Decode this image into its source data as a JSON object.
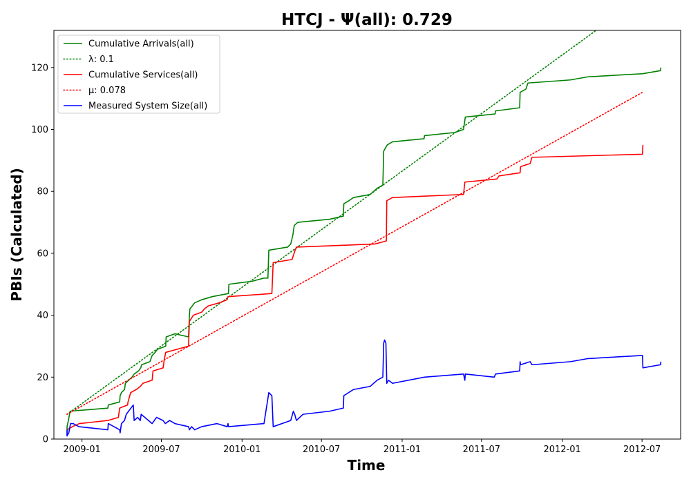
{
  "chart_data": {
    "type": "line",
    "title": "HTCJ -  Ψ(all): 0.729",
    "xlabel": "Time",
    "ylabel": "PBIs (Calculated)",
    "x_ticks": [
      "2009-01",
      "2009-07",
      "2010-01",
      "2010-07",
      "2011-01",
      "2011-07",
      "2012-01",
      "2012-07"
    ],
    "y_ticks": [
      0,
      20,
      40,
      60,
      80,
      100,
      120
    ],
    "xlim": [
      "2008-10-29",
      "2012-09-27"
    ],
    "ylim": [
      0,
      132
    ],
    "grid": false,
    "legend_position": "top-left",
    "series": [
      {
        "name": "Cumulative Arrivals(all)",
        "color": "#008000",
        "style": "solid",
        "points": [
          [
            "2008-11-28",
            1
          ],
          [
            "2008-11-28",
            4
          ],
          [
            "2008-12-01",
            6
          ],
          [
            "2008-12-05",
            9
          ],
          [
            "2009-03-01",
            10
          ],
          [
            "2009-03-02",
            11
          ],
          [
            "2009-03-28",
            12
          ],
          [
            "2009-03-29",
            14
          ],
          [
            "2009-04-01",
            15
          ],
          [
            "2009-04-08",
            16
          ],
          [
            "2009-04-10",
            18
          ],
          [
            "2009-04-25",
            20
          ],
          [
            "2009-04-30",
            21
          ],
          [
            "2009-05-10",
            22
          ],
          [
            "2009-05-15",
            23
          ],
          [
            "2009-05-17",
            24
          ],
          [
            "2009-06-05",
            25
          ],
          [
            "2009-06-10",
            27
          ],
          [
            "2009-06-17",
            28
          ],
          [
            "2009-06-22",
            29
          ],
          [
            "2009-07-11",
            30
          ],
          [
            "2009-07-12",
            33
          ],
          [
            "2009-08-01",
            34
          ],
          [
            "2009-09-01",
            33
          ],
          [
            "2009-09-03",
            40
          ],
          [
            "2009-09-04",
            42
          ],
          [
            "2009-09-15",
            44
          ],
          [
            "2009-10-01",
            45
          ],
          [
            "2009-10-25",
            46
          ],
          [
            "2009-12-01",
            47
          ],
          [
            "2009-12-02",
            50
          ],
          [
            "2010-01-25",
            51
          ],
          [
            "2010-02-20",
            52
          ],
          [
            "2010-03-01",
            52
          ],
          [
            "2010-03-03",
            61
          ],
          [
            "2010-04-15",
            62
          ],
          [
            "2010-04-22",
            63
          ],
          [
            "2010-04-27",
            66
          ],
          [
            "2010-04-30",
            69
          ],
          [
            "2010-05-08",
            70
          ],
          [
            "2010-07-20",
            71
          ],
          [
            "2010-08-20",
            72
          ],
          [
            "2010-08-21",
            76
          ],
          [
            "2010-09-02",
            77
          ],
          [
            "2010-09-12",
            78
          ],
          [
            "2010-10-20",
            79
          ],
          [
            "2010-11-05",
            81
          ],
          [
            "2010-11-18",
            82
          ],
          [
            "2010-11-20",
            93
          ],
          [
            "2010-11-28",
            95
          ],
          [
            "2010-12-10",
            96
          ],
          [
            "2011-02-20",
            97
          ],
          [
            "2011-02-21",
            98
          ],
          [
            "2011-05-01",
            99
          ],
          [
            "2011-05-21",
            100
          ],
          [
            "2011-05-25",
            104
          ],
          [
            "2011-08-01",
            105
          ],
          [
            "2011-08-02",
            106
          ],
          [
            "2011-09-26",
            107
          ],
          [
            "2011-09-27",
            112
          ],
          [
            "2011-10-10",
            113
          ],
          [
            "2011-10-15",
            115
          ],
          [
            "2012-01-20",
            116
          ],
          [
            "2012-02-29",
            117
          ],
          [
            "2012-07-02",
            118
          ],
          [
            "2012-08-12",
            119
          ],
          [
            "2012-08-13",
            120
          ]
        ]
      },
      {
        "name": "λ: 0.1",
        "color": "#008000",
        "style": "dotted",
        "points": [
          [
            "2008-11-28",
            8
          ],
          [
            "2012-03-28",
            133
          ]
        ]
      },
      {
        "name": "Cumulative Services(all)",
        "color": "#ff0000",
        "style": "solid",
        "points": [
          [
            "2008-11-28",
            3
          ],
          [
            "2008-12-10",
            4
          ],
          [
            "2008-12-26",
            5
          ],
          [
            "2009-03-01",
            6
          ],
          [
            "2009-03-25",
            7
          ],
          [
            "2009-03-28",
            10
          ],
          [
            "2009-04-15",
            11
          ],
          [
            "2009-04-16",
            12
          ],
          [
            "2009-04-18",
            13
          ],
          [
            "2009-04-22",
            15
          ],
          [
            "2009-05-05",
            16
          ],
          [
            "2009-05-14",
            17
          ],
          [
            "2009-05-20",
            18
          ],
          [
            "2009-06-10",
            19
          ],
          [
            "2009-06-12",
            22
          ],
          [
            "2009-07-05",
            23
          ],
          [
            "2009-07-08",
            26
          ],
          [
            "2009-07-11",
            28
          ],
          [
            "2009-09-01",
            30
          ],
          [
            "2009-09-03",
            38
          ],
          [
            "2009-09-12",
            40
          ],
          [
            "2009-10-01",
            41
          ],
          [
            "2009-10-07",
            42
          ],
          [
            "2009-10-16",
            43
          ],
          [
            "2009-11-10",
            44
          ],
          [
            "2009-11-28",
            45
          ],
          [
            "2009-11-30",
            46
          ],
          [
            "2010-03-10",
            47
          ],
          [
            "2010-03-13",
            57
          ],
          [
            "2010-04-25",
            58
          ],
          [
            "2010-05-02",
            61
          ],
          [
            "2010-05-05",
            62
          ],
          [
            "2010-10-31",
            63
          ],
          [
            "2010-11-26",
            64
          ],
          [
            "2010-11-27",
            77
          ],
          [
            "2010-12-10",
            78
          ],
          [
            "2011-05-21",
            79
          ],
          [
            "2011-05-24",
            83
          ],
          [
            "2011-08-05",
            84
          ],
          [
            "2011-08-10",
            85
          ],
          [
            "2011-09-27",
            86
          ],
          [
            "2011-09-28",
            88
          ],
          [
            "2011-10-20",
            89
          ],
          [
            "2011-10-24",
            91
          ],
          [
            "2012-07-02",
            92
          ],
          [
            "2012-07-03",
            95
          ]
        ]
      },
      {
        "name": "μ: 0.078",
        "color": "#ff0000",
        "style": "dotted",
        "points": [
          [
            "2008-11-28",
            8
          ],
          [
            "2012-07-02",
            112
          ]
        ]
      },
      {
        "name": "Measured System Size(all)",
        "color": "#0000ff",
        "style": "solid",
        "points": [
          [
            "2008-11-28",
            3
          ],
          [
            "2008-11-28",
            1
          ],
          [
            "2008-12-02",
            2
          ],
          [
            "2008-12-06",
            5
          ],
          [
            "2008-12-12",
            5
          ],
          [
            "2008-12-25",
            4
          ],
          [
            "2009-03-01",
            3
          ],
          [
            "2009-03-02",
            5
          ],
          [
            "2009-03-28",
            3
          ],
          [
            "2009-03-29",
            2
          ],
          [
            "2009-04-01",
            5
          ],
          [
            "2009-04-08",
            6
          ],
          [
            "2009-04-12",
            8
          ],
          [
            "2009-04-28",
            11
          ],
          [
            "2009-04-30",
            6
          ],
          [
            "2009-05-08",
            7
          ],
          [
            "2009-05-14",
            6
          ],
          [
            "2009-05-16",
            8
          ],
          [
            "2009-06-10",
            5
          ],
          [
            "2009-06-20",
            7
          ],
          [
            "2009-07-05",
            6
          ],
          [
            "2009-07-10",
            5
          ],
          [
            "2009-07-20",
            6
          ],
          [
            "2009-08-01",
            5
          ],
          [
            "2009-09-01",
            4
          ],
          [
            "2009-09-03",
            3
          ],
          [
            "2009-09-08",
            4
          ],
          [
            "2009-09-15",
            3
          ],
          [
            "2009-10-01",
            4
          ],
          [
            "2009-11-05",
            5
          ],
          [
            "2009-11-28",
            4
          ],
          [
            "2009-11-30",
            5
          ],
          [
            "2009-12-01",
            4
          ],
          [
            "2010-02-20",
            5
          ],
          [
            "2010-03-03",
            15
          ],
          [
            "2010-03-10",
            14
          ],
          [
            "2010-03-13",
            4
          ],
          [
            "2010-04-22",
            6
          ],
          [
            "2010-04-28",
            9
          ],
          [
            "2010-05-01",
            8
          ],
          [
            "2010-05-03",
            7
          ],
          [
            "2010-05-05",
            6
          ],
          [
            "2010-05-20",
            8
          ],
          [
            "2010-07-20",
            9
          ],
          [
            "2010-08-20",
            10
          ],
          [
            "2010-08-21",
            14
          ],
          [
            "2010-09-12",
            16
          ],
          [
            "2010-10-20",
            17
          ],
          [
            "2010-11-05",
            19
          ],
          [
            "2010-11-18",
            20
          ],
          [
            "2010-11-20",
            31
          ],
          [
            "2010-11-22",
            32
          ],
          [
            "2010-11-25",
            31
          ],
          [
            "2010-11-27",
            18
          ],
          [
            "2010-12-01",
            19
          ],
          [
            "2010-12-10",
            18
          ],
          [
            "2011-02-21",
            20
          ],
          [
            "2011-05-21",
            21
          ],
          [
            "2011-05-24",
            19
          ],
          [
            "2011-05-25",
            21
          ],
          [
            "2011-07-30",
            20
          ],
          [
            "2011-08-02",
            21
          ],
          [
            "2011-09-26",
            22
          ],
          [
            "2011-09-27",
            25
          ],
          [
            "2011-09-28",
            24
          ],
          [
            "2011-10-20",
            25
          ],
          [
            "2011-10-24",
            24
          ],
          [
            "2012-01-20",
            25
          ],
          [
            "2012-02-29",
            26
          ],
          [
            "2012-07-02",
            27
          ],
          [
            "2012-07-03",
            23
          ],
          [
            "2012-08-12",
            24
          ],
          [
            "2012-08-13",
            25
          ]
        ]
      }
    ]
  }
}
